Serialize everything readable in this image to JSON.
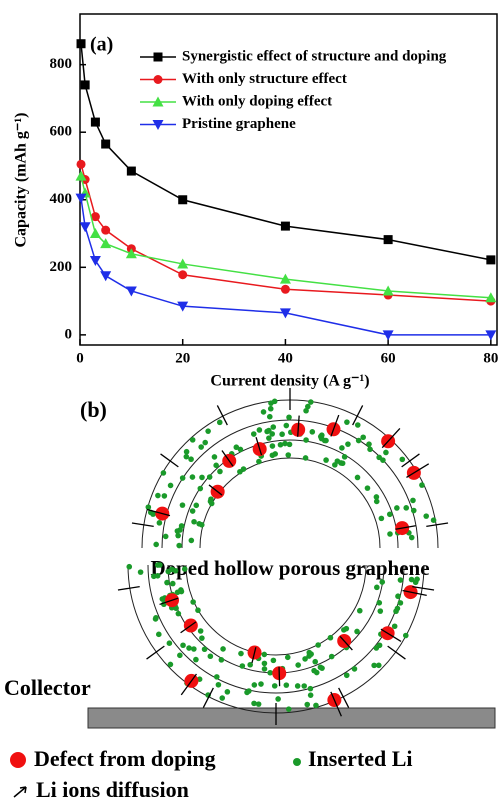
{
  "chart_data": {
    "type": "line",
    "annotation": "(a)",
    "x_label": "Current density (A g⁻¹)",
    "y_label": "Capacity (mAh g⁻¹)",
    "x": [
      0.2,
      1,
      3,
      5,
      10,
      20,
      40,
      60,
      80
    ],
    "series": [
      {
        "name": "Synergistic effect of structure and doping",
        "color": "#000000",
        "marker": "square",
        "values": [
          862,
          740,
          630,
          565,
          485,
          400,
          322,
          282,
          222
        ]
      },
      {
        "name": "With only structure effect",
        "color": "#e8191e",
        "marker": "circle",
        "values": [
          505,
          460,
          350,
          310,
          255,
          178,
          135,
          118,
          100
        ]
      },
      {
        "name": "With only doping effect",
        "color": "#44e044",
        "marker": "triangle-up",
        "values": [
          470,
          420,
          300,
          270,
          240,
          210,
          165,
          130,
          110
        ]
      },
      {
        "name": "Pristine graphene",
        "color": "#1f2ee8",
        "marker": "triangle-down",
        "values": [
          405,
          320,
          220,
          175,
          130,
          85,
          65,
          0,
          0
        ]
      }
    ],
    "xlim": [
      0,
      81.2
    ],
    "xticks": [
      0,
      20,
      40,
      60,
      80
    ],
    "ylim": [
      -30,
      950
    ],
    "yticks": [
      0,
      200,
      400,
      600,
      800
    ]
  },
  "diagram": {
    "label": "(b)",
    "shell_label": "Doped hollow porous graphene",
    "collector_label": "Collector",
    "legend": [
      "Defect from doping",
      "Inserted Li",
      "Li ions diffusion"
    ]
  }
}
